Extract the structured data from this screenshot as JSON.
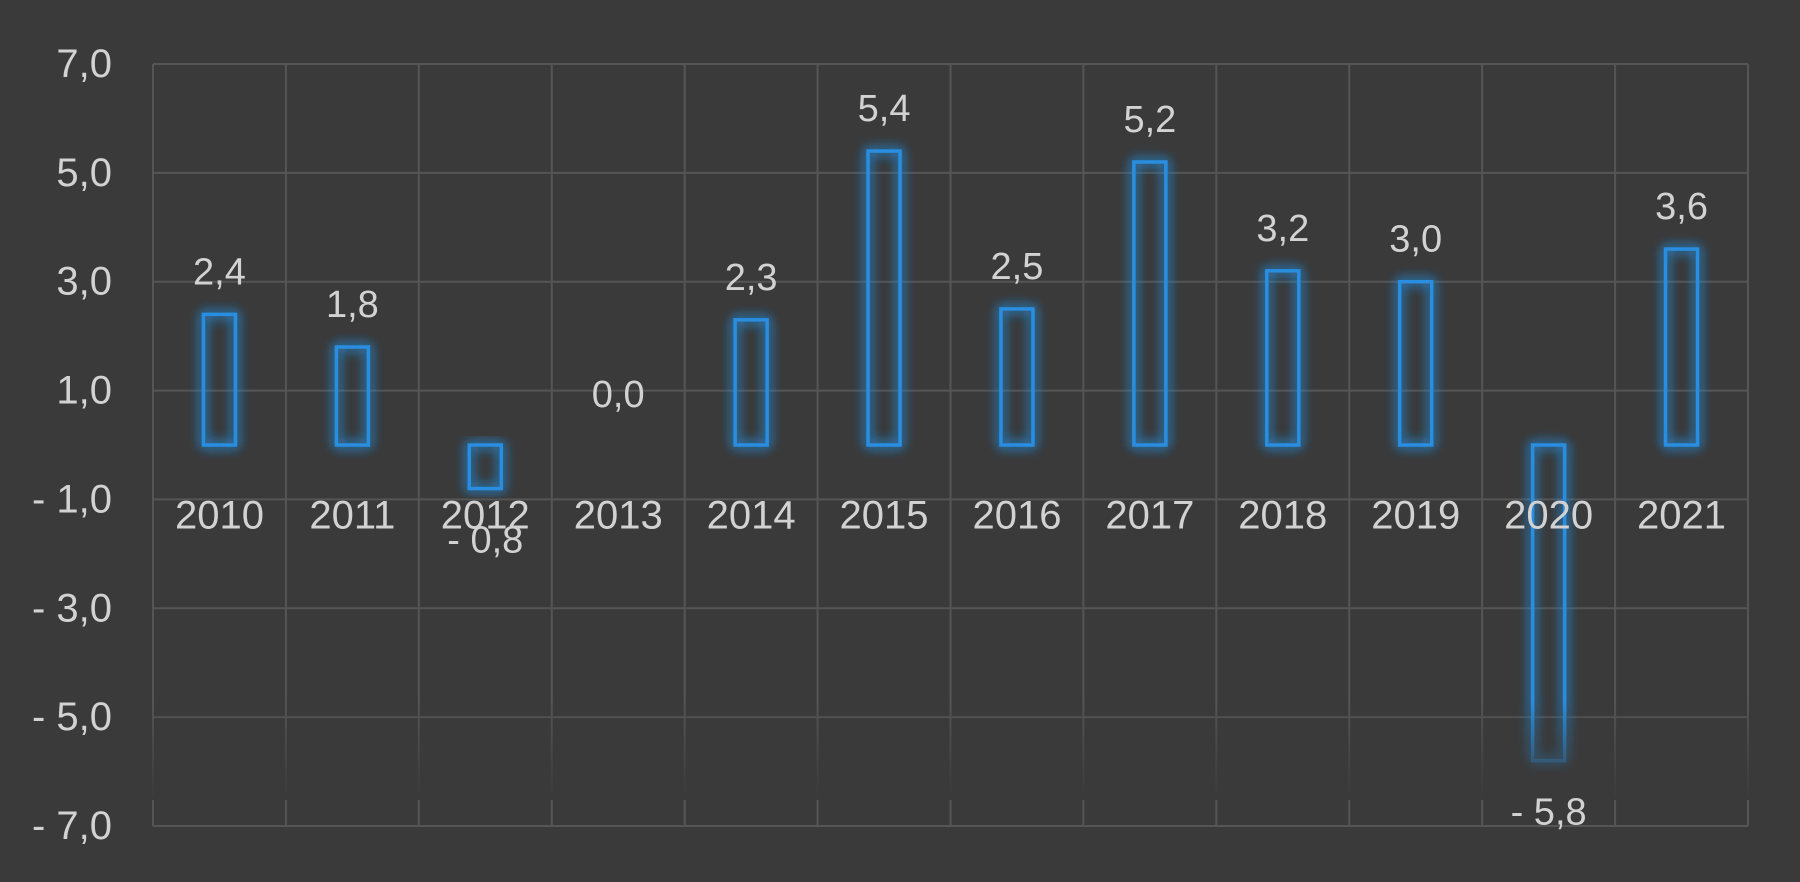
{
  "chart_data": {
    "type": "bar",
    "categories": [
      "2010",
      "2011",
      "2012",
      "2013",
      "2014",
      "2015",
      "2016",
      "2017",
      "2018",
      "2019",
      "2020",
      "2021"
    ],
    "values": [
      2.4,
      1.8,
      -0.8,
      0.0,
      2.3,
      5.4,
      2.5,
      5.2,
      3.2,
      3.0,
      -5.8,
      3.6
    ],
    "value_labels": [
      "2,4",
      "1,8",
      "- 0,8",
      "0,0",
      "2,3",
      "5,4",
      "2,5",
      "5,2",
      "3,2",
      "3,0",
      "- 5,8",
      "3,6"
    ],
    "yticks": [
      7,
      5,
      3,
      1,
      -1,
      -3,
      -5,
      -7
    ],
    "ytick_labels": [
      "7,0",
      "5,0",
      "3,0",
      "1,0",
      "- 1,0",
      "- 3,0",
      "- 5,0",
      "- 7,0"
    ],
    "ylim": [
      -7,
      7
    ],
    "grid": true,
    "legend": "none",
    "colors": {
      "background": "#3a3a3a",
      "bar_stroke": "#2a8ee0",
      "bar_glow": "#1e90ff",
      "text": "#d2d2d2",
      "grid": "#555555"
    }
  }
}
